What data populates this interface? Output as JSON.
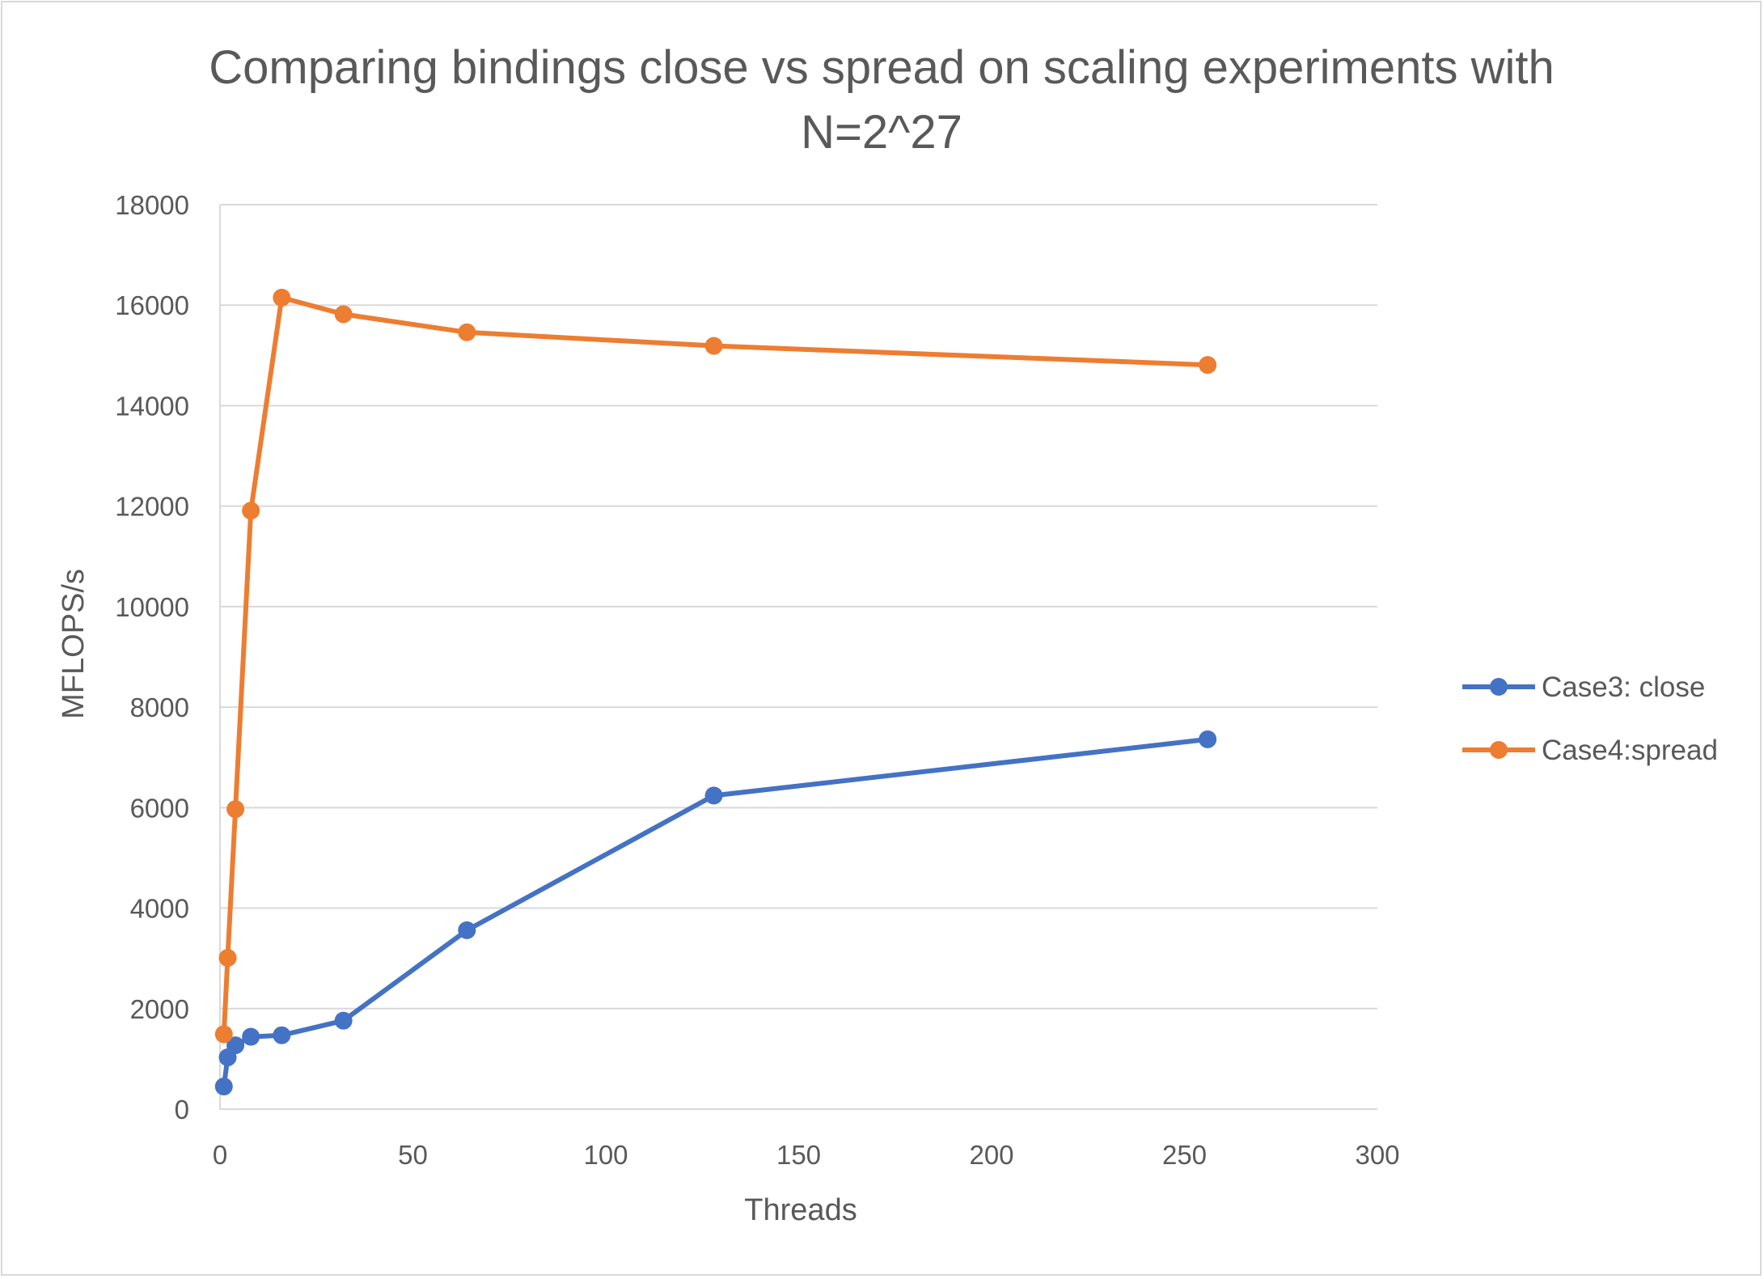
{
  "chart_data": {
    "type": "line",
    "title": "Comparing bindings close vs spread on scaling experiments with N=2^27",
    "xlabel": "Threads",
    "ylabel": "MFLOPS/s",
    "xlim": [
      0,
      300
    ],
    "ylim": [
      0,
      18000
    ],
    "x_ticks": [
      "0",
      "50",
      "100",
      "150",
      "200",
      "250",
      "300"
    ],
    "y_ticks": [
      "0",
      "2000",
      "4000",
      "6000",
      "8000",
      "10000",
      "12000",
      "14000",
      "16000",
      "18000"
    ],
    "grid": true,
    "legend_position": "right",
    "series": [
      {
        "name": "Case3: close",
        "color": "#4472c4",
        "x": [
          1,
          2,
          4,
          8,
          16,
          32,
          64,
          128,
          256
        ],
        "y": [
          450,
          1030,
          1270,
          1440,
          1470,
          1760,
          3560,
          6240,
          7360
        ]
      },
      {
        "name": "Case4:spread",
        "color": "#ed7d31",
        "x": [
          1,
          2,
          4,
          8,
          16,
          32,
          64,
          128,
          256
        ],
        "y": [
          1490,
          3010,
          5970,
          11910,
          16150,
          15820,
          15460,
          15190,
          14810
        ]
      }
    ]
  }
}
